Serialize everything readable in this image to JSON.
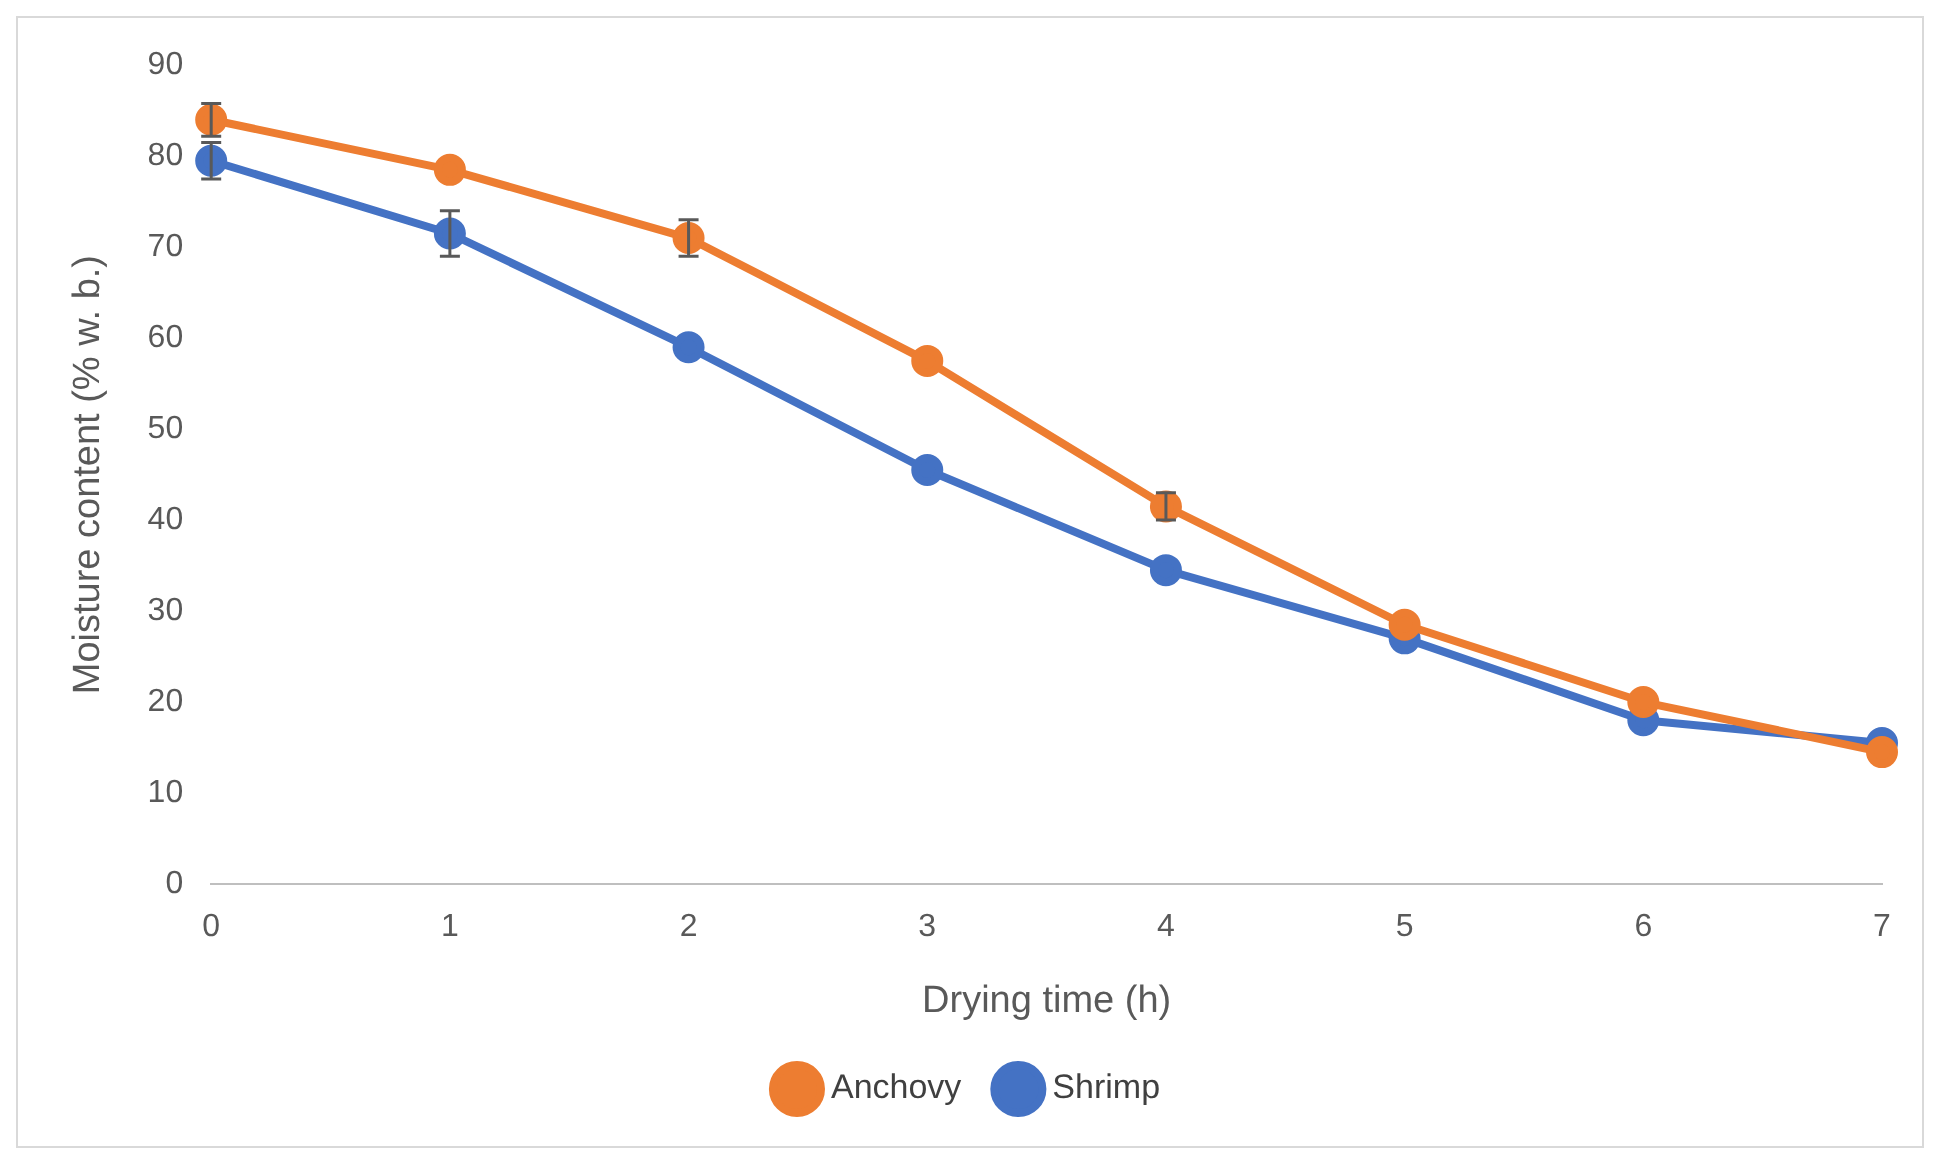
{
  "chart_data": {
    "type": "line",
    "xlabel": "Drying time (h)",
    "ylabel": "Moisture content (% w. b.)",
    "categories": [
      "0",
      "1",
      "2",
      "3",
      "4",
      "5",
      "6",
      "7"
    ],
    "ylim": [
      0,
      90
    ],
    "yticks": [
      0,
      10,
      20,
      30,
      40,
      50,
      60,
      70,
      80,
      90
    ],
    "grid": false,
    "legend": "bottom",
    "marker": "circle",
    "series": [
      {
        "name": "Shrimp",
        "color": "#4472c4",
        "values": [
          79.5,
          71.5,
          59,
          45.5,
          34.5,
          27,
          18,
          15.5
        ],
        "errors": [
          2,
          2.5,
          null,
          null,
          null,
          null,
          null,
          null
        ]
      },
      {
        "name": "Anchovy",
        "color": "#ed7d31",
        "values": [
          84,
          78.5,
          71,
          57.5,
          41.5,
          28.5,
          20,
          14.5
        ],
        "errors": [
          1.8,
          null,
          2,
          null,
          1.5,
          null,
          null,
          null
        ]
      }
    ]
  }
}
